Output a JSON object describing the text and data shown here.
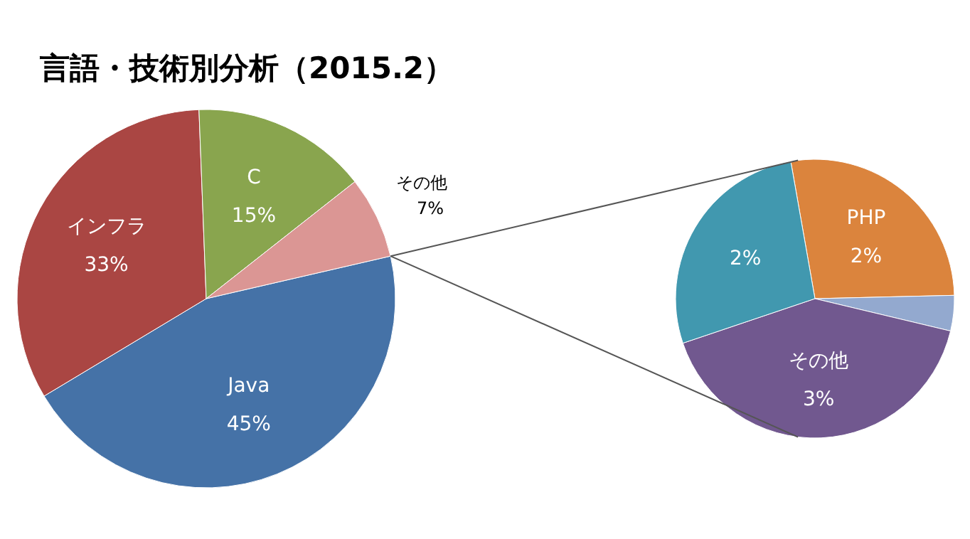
{
  "chart_data": [
    {
      "type": "pie",
      "title": "言語・技術別分析（2015.2）",
      "categories": [
        "Java",
        "インフラ",
        "C",
        "その他"
      ],
      "values": [
        45,
        33,
        15,
        7
      ],
      "colors": [
        "#4572a7",
        "#aa4643",
        "#89a54e",
        "#db9694"
      ],
      "value_labels": [
        "45%",
        "33%",
        "15%",
        "7%"
      ]
    },
    {
      "type": "pie",
      "categories": [
        "PHP",
        null,
        "その他",
        null
      ],
      "values": [
        2,
        0.3,
        3,
        2
      ],
      "colors": [
        "#db843d",
        "#93a9cf",
        "#71588f",
        "#4198af"
      ],
      "value_labels": [
        "2%",
        null,
        "3%",
        "2%"
      ]
    }
  ]
}
